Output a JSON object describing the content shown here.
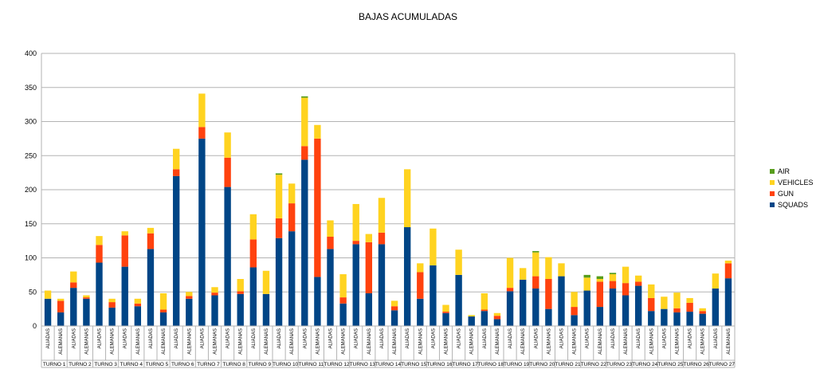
{
  "chart_data": {
    "type": "bar",
    "stacked": true,
    "title": "BAJAS ACUMULADAS",
    "xlabel": "",
    "ylabel": "",
    "ylim": [
      0,
      400
    ],
    "yticks": [
      0,
      50,
      100,
      150,
      200,
      250,
      300,
      350,
      400
    ],
    "grid": true,
    "legend_position": "right",
    "categories": [
      "ALIADAS",
      "ALEMANAS",
      "ALIADAS",
      "ALEMANAS",
      "ALIADAS",
      "ALEMANAS",
      "ALIADAS",
      "ALEMANAS",
      "ALIADAS",
      "ALEMANAS",
      "ALIADAS",
      "ALEMANAS",
      "ALIADAS",
      "ALEMANAS",
      "ALIADAS",
      "ALEMANAS",
      "ALIADAS",
      "ALEMANAS",
      "ALIADAS",
      "ALEMANAS",
      "ALIADAS",
      "ALEMANAS",
      "ALIADAS",
      "ALEMANAS",
      "ALIADAS",
      "ALEMANAS",
      "ALIADAS",
      "ALEMANAS",
      "ALIADAS",
      "ALEMANAS",
      "ALIADAS",
      "ALEMANAS",
      "ALIADAS",
      "ALEMANAS",
      "ALIADAS",
      "ALEMANAS",
      "ALIADAS",
      "ALEMANAS",
      "ALIADAS",
      "ALEMANAS",
      "ALIADAS",
      "ALEMANAS",
      "ALIADAS",
      "ALEMANAS",
      "ALIADAS",
      "ALEMANAS",
      "ALIADAS",
      "ALEMANAS",
      "ALIADAS",
      "ALEMANAS",
      "ALIADAS",
      "ALEMANAS",
      "ALIADAS",
      "ALEMANAS"
    ],
    "groups": [
      "TURNO 1",
      "TURNO 2",
      "TURNO 3",
      "TURNO 4",
      "TURNO 5",
      "TURNO 6",
      "TURNO 7",
      "TURNO 8",
      "TURNO 9",
      "TURNO 10",
      "TURNO 11",
      "TURNO 12",
      "TURNO 13",
      "TURNO 14",
      "TURNO 15",
      "TURNO 16",
      "TURNO 17",
      "TURNO 18",
      "TURNO 19",
      "TURNO 20",
      "TURNO 21",
      "TURNO 22",
      "TURNO 23",
      "TURNO 24",
      "TURNO 25",
      "TURNO 26",
      "TURNO 27"
    ],
    "series": [
      {
        "name": "SQUADS",
        "color": "#004586",
        "values": [
          40,
          20,
          56,
          40,
          93,
          27,
          87,
          29,
          113,
          20,
          220,
          40,
          275,
          45,
          204,
          47,
          86,
          47,
          129,
          139,
          244,
          72,
          113,
          33,
          120,
          48,
          120,
          23,
          145,
          40,
          89,
          19,
          75,
          14,
          22,
          10,
          51,
          68,
          55,
          25,
          73,
          16,
          52,
          28,
          55,
          45,
          59,
          22,
          25,
          20,
          21,
          18,
          55,
          70
        ]
      },
      {
        "name": "GUN",
        "color": "#ff420e",
        "values": [
          0,
          17,
          8,
          2,
          26,
          8,
          46,
          4,
          23,
          4,
          10,
          4,
          17,
          4,
          43,
          4,
          41,
          0,
          29,
          41,
          20,
          203,
          18,
          9,
          5,
          75,
          17,
          6,
          0,
          39,
          0,
          2,
          0,
          0,
          2,
          5,
          5,
          0,
          18,
          44,
          0,
          12,
          0,
          37,
          11,
          18,
          6,
          19,
          0,
          6,
          13,
          4,
          0,
          22
        ]
      },
      {
        "name": "VEHICLES",
        "color": "#ffd320",
        "values": [
          12,
          3,
          16,
          3,
          13,
          5,
          6,
          7,
          8,
          24,
          30,
          6,
          49,
          8,
          37,
          18,
          37,
          34,
          64,
          29,
          71,
          20,
          24,
          34,
          54,
          12,
          51,
          8,
          85,
          13,
          54,
          10,
          37,
          2,
          24,
          4,
          44,
          17,
          35,
          32,
          19,
          22,
          19,
          4,
          10,
          24,
          9,
          20,
          18,
          23,
          7,
          4,
          22,
          4
        ]
      },
      {
        "name": "AIR",
        "color": "#579d1c",
        "values": [
          0,
          0,
          0,
          0,
          0,
          0,
          0,
          0,
          0,
          0,
          0,
          0,
          0,
          0,
          0,
          0,
          0,
          0,
          2,
          0,
          2,
          0,
          0,
          0,
          0,
          0,
          0,
          0,
          0,
          0,
          0,
          0,
          0,
          0,
          0,
          0,
          0,
          0,
          2,
          0,
          0,
          0,
          4,
          4,
          2,
          0,
          0,
          0,
          0,
          0,
          0,
          0,
          0,
          0
        ]
      }
    ]
  }
}
